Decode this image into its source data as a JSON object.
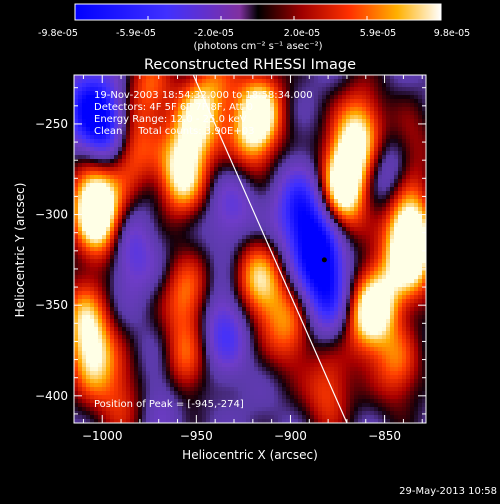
{
  "colorbar": {
    "tick_labels": [
      "-9.8e-05",
      "-5.9e-05",
      "-2.0e-05",
      "2.0e-05",
      "5.9e-05",
      "9.8e-05"
    ],
    "unit_label": "(photons cm⁻² s⁻¹ asec⁻²)",
    "min": -9.8e-05,
    "max": 9.8e-05
  },
  "chart_data": {
    "type": "heatmap",
    "title": "Reconstructed RHESSI Image",
    "xlabel": "Heliocentric X (arcsec)",
    "ylabel": "Heliocentric Y (arcsec)",
    "xlim": [
      -1015,
      -828
    ],
    "ylim": [
      -415,
      -223
    ],
    "x_ticks": [
      -1000,
      -950,
      -900,
      -850
    ],
    "y_ticks": [
      -400,
      -350,
      -300,
      -250
    ],
    "x_tick_labels": [
      "−1000",
      "−950",
      "−900",
      "−850"
    ],
    "y_tick_labels": [
      "−400",
      "−350",
      "−300",
      "−250"
    ],
    "annotations": [
      "19-Nov-2003 18:54:32.000 to 18:58:34.000",
      "Detectors: 4F 5F 6F 7F 8F, Att 0",
      "Energy Range: 12.0 - 25.0 keV",
      "Clean     Total counts: 3.90E+03"
    ],
    "peak_label": "Position of Peak = [-945,-274]",
    "peak": [
      -945,
      -274
    ],
    "marker": [
      -882,
      -325
    ],
    "limb_line": [
      [
        -955,
        -215
      ],
      [
        -870,
        -415
      ]
    ],
    "blobs": [
      {
        "x": -958,
        "y": -278,
        "v": 1.0
      },
      {
        "x": -950,
        "y": -250,
        "v": 0.9
      },
      {
        "x": -1005,
        "y": -290,
        "v": 1.0
      },
      {
        "x": -1000,
        "y": -305,
        "v": 0.8
      },
      {
        "x": -985,
        "y": -265,
        "v": 0.7
      },
      {
        "x": -920,
        "y": -255,
        "v": 0.8
      },
      {
        "x": -915,
        "y": -240,
        "v": 0.7
      },
      {
        "x": -872,
        "y": -290,
        "v": 0.9
      },
      {
        "x": -870,
        "y": -270,
        "v": 0.8
      },
      {
        "x": -862,
        "y": -250,
        "v": 0.7
      },
      {
        "x": -838,
        "y": -305,
        "v": 1.0
      },
      {
        "x": -835,
        "y": -325,
        "v": 0.9
      },
      {
        "x": -838,
        "y": -265,
        "v": 0.6
      },
      {
        "x": -975,
        "y": -230,
        "v": 0.6
      },
      {
        "x": -940,
        "y": -228,
        "v": 0.5
      },
      {
        "x": -1005,
        "y": -378,
        "v": 0.9
      },
      {
        "x": -1010,
        "y": -355,
        "v": 0.6
      },
      {
        "x": -955,
        "y": -345,
        "v": 0.7
      },
      {
        "x": -958,
        "y": -385,
        "v": 0.8
      },
      {
        "x": -920,
        "y": -332,
        "v": 0.6
      },
      {
        "x": -912,
        "y": -345,
        "v": 0.5
      },
      {
        "x": -900,
        "y": -365,
        "v": 0.6
      },
      {
        "x": -860,
        "y": -358,
        "v": 0.8
      },
      {
        "x": -852,
        "y": -345,
        "v": 0.7
      },
      {
        "x": -843,
        "y": -385,
        "v": 0.6
      },
      {
        "x": -880,
        "y": -398,
        "v": 0.6
      },
      {
        "x": -990,
        "y": -402,
        "v": 0.5
      },
      {
        "x": -1008,
        "y": -240,
        "v": -0.7
      },
      {
        "x": -998,
        "y": -253,
        "v": -0.9
      },
      {
        "x": -885,
        "y": -320,
        "v": -1.0
      },
      {
        "x": -895,
        "y": -298,
        "v": -0.8
      },
      {
        "x": -880,
        "y": -345,
        "v": -0.7
      },
      {
        "x": -935,
        "y": -362,
        "v": -0.6
      },
      {
        "x": -965,
        "y": -395,
        "v": -0.5
      },
      {
        "x": -845,
        "y": -275,
        "v": -0.6
      },
      {
        "x": -985,
        "y": -320,
        "v": -0.5
      },
      {
        "x": -930,
        "y": -300,
        "v": -0.4
      }
    ]
  },
  "footer": {
    "date": "29-May-2013 10:58"
  }
}
